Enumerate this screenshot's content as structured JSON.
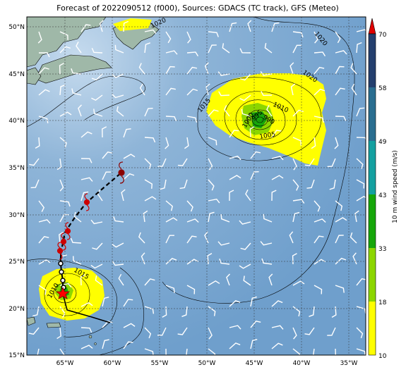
{
  "title": "Forecast of 2022090512 (f000), Sources: GDACS (TC track), GFS (Meteo)",
  "lon_ticks": [
    "65°W",
    "60°W",
    "55°W",
    "50°W",
    "45°W",
    "40°W",
    "35°W"
  ],
  "lat_ticks": [
    "50°N",
    "45°N",
    "40°N",
    "35°N",
    "30°N",
    "25°N",
    "20°N",
    "15°N"
  ],
  "colorbar": {
    "label": "10 m wind speed (m/s)",
    "ticks": [
      "10",
      "18",
      "33",
      "43",
      "49",
      "58",
      "70"
    ],
    "colors": [
      "#ffff00",
      "#8cd600",
      "#16a60a",
      "#14a0a0",
      "#2a6e90",
      "#243f6e"
    ],
    "extend_color": "#e00000"
  },
  "pressure_labels": [
    "1020",
    "1020",
    "1020",
    "1015",
    "1010",
    "1005",
    "1000",
    "995",
    "990",
    "1015",
    "1010"
  ],
  "track": {
    "observed_color": "#000000",
    "forecast_color": "#000000",
    "storm_color": "#cc0000"
  }
}
